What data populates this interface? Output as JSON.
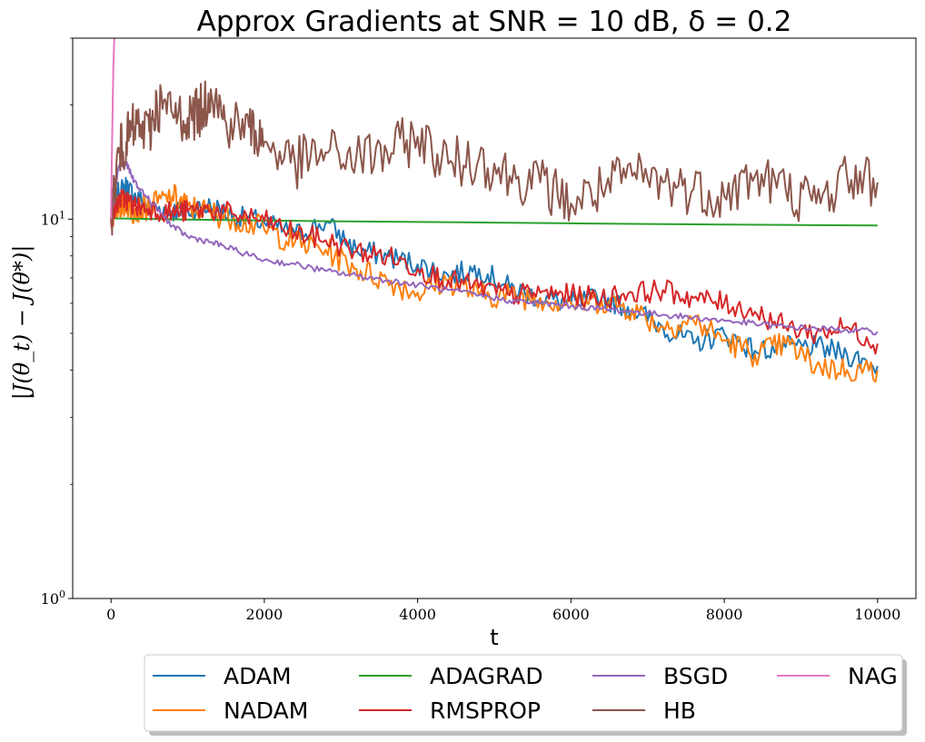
{
  "chart_data": {
    "type": "line",
    "title": "Approx Gradients at SNR = 10 dB, δ = 0.2",
    "xlabel": "t",
    "ylabel": "|J(θ_t) − J(θ*)|",
    "xlim": [
      -500,
      10500
    ],
    "ylim": [
      1,
      30
    ],
    "yscale": "log",
    "xticks": [
      0,
      2000,
      4000,
      6000,
      8000,
      10000
    ],
    "xtick_labels": [
      "0",
      "2000",
      "4000",
      "6000",
      "8000",
      "10000"
    ],
    "ytick_labels": [
      {
        "value": 1,
        "base": "10",
        "exp": "0"
      },
      {
        "value": 10,
        "base": "10",
        "exp": "1"
      }
    ],
    "grid": false,
    "legend": {
      "position": "bottom-center",
      "columns": 4
    },
    "series": [
      {
        "name": "ADAM",
        "color": "#1f77b4",
        "x": [
          0,
          100,
          200,
          300,
          500,
          800,
          1000,
          1300,
          1600,
          2000,
          2400,
          2800,
          3200,
          3600,
          4000,
          4400,
          4800,
          5200,
          5600,
          6000,
          6400,
          6800,
          7200,
          7600,
          8000,
          8400,
          8800,
          9200,
          9600,
          10000
        ],
        "y": [
          10.0,
          11.8,
          12.2,
          11.5,
          10.8,
          10.5,
          10.6,
          10.8,
          10.2,
          9.8,
          9.1,
          9.8,
          8.3,
          8.0,
          7.6,
          7.1,
          7.4,
          6.6,
          6.2,
          6.0,
          6.2,
          5.8,
          5.2,
          4.7,
          5.0,
          4.5,
          4.6,
          4.6,
          4.4,
          4.1
        ]
      },
      {
        "name": "NADAM",
        "color": "#ff7f0e",
        "x": [
          0,
          100,
          200,
          300,
          500,
          800,
          1000,
          1300,
          1600,
          2000,
          2400,
          2800,
          3200,
          3600,
          4000,
          4400,
          4800,
          5200,
          5600,
          6000,
          6400,
          6800,
          7200,
          7600,
          8000,
          8400,
          8800,
          9200,
          9600,
          10000
        ],
        "y": [
          10.0,
          10.8,
          11.0,
          10.5,
          10.8,
          11.5,
          10.8,
          10.4,
          10.1,
          9.4,
          8.7,
          8.3,
          7.4,
          6.9,
          6.4,
          6.9,
          6.3,
          6.3,
          6.2,
          6.0,
          6.1,
          5.8,
          5.2,
          5.4,
          4.8,
          4.4,
          4.7,
          4.1,
          4.0,
          4.0
        ]
      },
      {
        "name": "ADAGRAD",
        "color": "#2ca02c",
        "x": [
          0,
          1000,
          2000,
          3000,
          4000,
          5000,
          6000,
          7000,
          8000,
          9000,
          10000
        ],
        "y": [
          10.05,
          9.98,
          9.92,
          9.87,
          9.83,
          9.79,
          9.75,
          9.71,
          9.68,
          9.65,
          9.62
        ]
      },
      {
        "name": "RMSPROP",
        "color": "#d62728",
        "x": [
          0,
          100,
          200,
          300,
          500,
          800,
          1000,
          1300,
          1600,
          2000,
          2400,
          2800,
          3200,
          3600,
          4000,
          4400,
          4800,
          5200,
          5600,
          6000,
          6400,
          6800,
          7200,
          7600,
          8000,
          8400,
          8800,
          9200,
          9600,
          10000
        ],
        "y": [
          10.0,
          11.2,
          11.3,
          10.8,
          10.7,
          10.4,
          10.5,
          10.6,
          10.3,
          9.9,
          9.2,
          8.8,
          8.2,
          8.0,
          7.4,
          6.9,
          6.6,
          6.3,
          6.4,
          6.3,
          6.2,
          6.4,
          6.5,
          6.2,
          6.0,
          5.7,
          5.2,
          5.0,
          5.2,
          4.7
        ]
      },
      {
        "name": "BSGD",
        "color": "#9467bd",
        "x": [
          0,
          100,
          200,
          300,
          500,
          800,
          1000,
          1300,
          1600,
          2000,
          2400,
          2800,
          3200,
          3600,
          4000,
          4400,
          4800,
          5200,
          5600,
          6000,
          6400,
          6800,
          7200,
          7600,
          8000,
          8400,
          8800,
          9200,
          9600,
          10000
        ],
        "y": [
          10.0,
          13.8,
          14.0,
          12.6,
          11.2,
          9.6,
          9.0,
          8.7,
          8.3,
          7.8,
          7.6,
          7.3,
          7.1,
          6.9,
          6.7,
          6.5,
          6.3,
          6.1,
          6.0,
          5.9,
          5.8,
          5.7,
          5.6,
          5.5,
          5.4,
          5.3,
          5.2,
          5.15,
          5.1,
          5.05
        ]
      },
      {
        "name": "HB",
        "color": "#8c564b",
        "x": [
          0,
          100,
          200,
          300,
          500,
          600,
          800,
          1000,
          1200,
          1300,
          1500,
          1800,
          2000,
          2400,
          2800,
          3200,
          3600,
          4000,
          4400,
          4800,
          5200,
          5600,
          6000,
          6400,
          6800,
          7200,
          7600,
          8000,
          8400,
          8800,
          9200,
          9600,
          10000
        ],
        "y": [
          10.0,
          15.0,
          16.0,
          17.5,
          17.0,
          20.0,
          19.0,
          18.5,
          19.5,
          22.0,
          18.0,
          17.5,
          16.0,
          14.0,
          15.0,
          14.5,
          15.0,
          16.5,
          14.0,
          14.5,
          13.0,
          12.5,
          11.0,
          12.0,
          13.0,
          12.5,
          12.0,
          11.5,
          13.0,
          12.0,
          11.0,
          13.0,
          12.5
        ]
      },
      {
        "name": "NAG",
        "color": "#e377c2",
        "x": [
          0,
          10,
          20,
          30,
          40,
          45
        ],
        "y": [
          10.0,
          14.0,
          19.0,
          25.0,
          29.0,
          30.5
        ]
      }
    ]
  }
}
